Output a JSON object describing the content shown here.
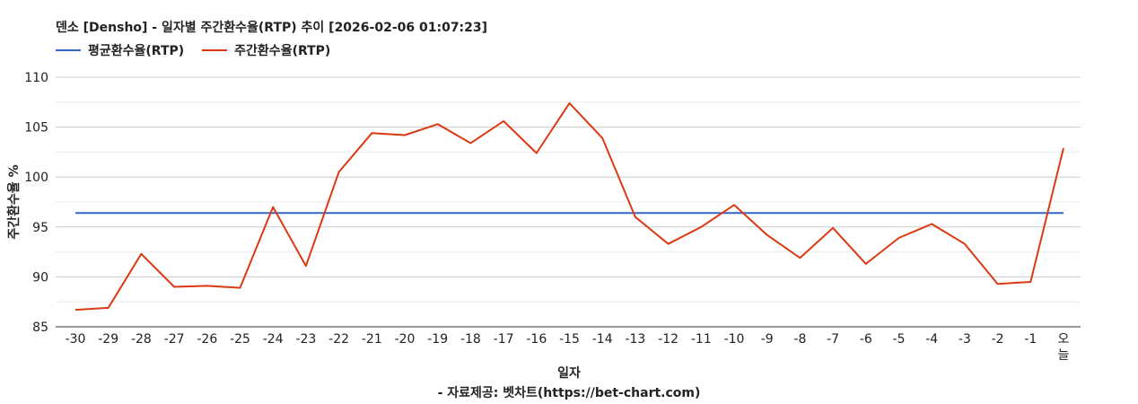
{
  "chart_data": {
    "type": "line",
    "title": "덴소 [Densho] - 일자별 주간환수율(RTP) 추이 [2026-02-06 01:07:23]",
    "xlabel": "일자",
    "ylabel": "주간환수율 %",
    "source": "- 자료제공: 벳차트(https://bet-chart.com)",
    "ylim": [
      85,
      110
    ],
    "yticks": [
      "85",
      "90",
      "95",
      "100",
      "105",
      "110"
    ],
    "grid": true,
    "legend_position": "top-left",
    "categories": [
      "-30",
      "-29",
      "-28",
      "-27",
      "-26",
      "-25",
      "-24",
      "-23",
      "-22",
      "-21",
      "-20",
      "-19",
      "-18",
      "-17",
      "-16",
      "-15",
      "-14",
      "-13",
      "-12",
      "-11",
      "-10",
      "-9",
      "-8",
      "-7",
      "-6",
      "-5",
      "-4",
      "-3",
      "-2",
      "-1",
      "오늘"
    ],
    "series": [
      {
        "name": "평균환수율(RTP)",
        "color": "#3366cc",
        "values": [
          96.4,
          96.4,
          96.4,
          96.4,
          96.4,
          96.4,
          96.4,
          96.4,
          96.4,
          96.4,
          96.4,
          96.4,
          96.4,
          96.4,
          96.4,
          96.4,
          96.4,
          96.4,
          96.4,
          96.4,
          96.4,
          96.4,
          96.4,
          96.4,
          96.4,
          96.4,
          96.4,
          96.4,
          96.4,
          96.4,
          96.4
        ]
      },
      {
        "name": "주간환수율(RTP)",
        "color": "#dc3912",
        "values": [
          86.7,
          86.9,
          92.3,
          89.0,
          89.1,
          88.9,
          97.0,
          91.1,
          100.5,
          104.4,
          104.2,
          105.3,
          103.4,
          105.6,
          102.4,
          107.4,
          103.9,
          96.0,
          93.3,
          95.0,
          97.2,
          94.2,
          91.9,
          94.9,
          91.3,
          93.9,
          95.3,
          93.3,
          89.3,
          89.5,
          102.9
        ]
      }
    ]
  }
}
